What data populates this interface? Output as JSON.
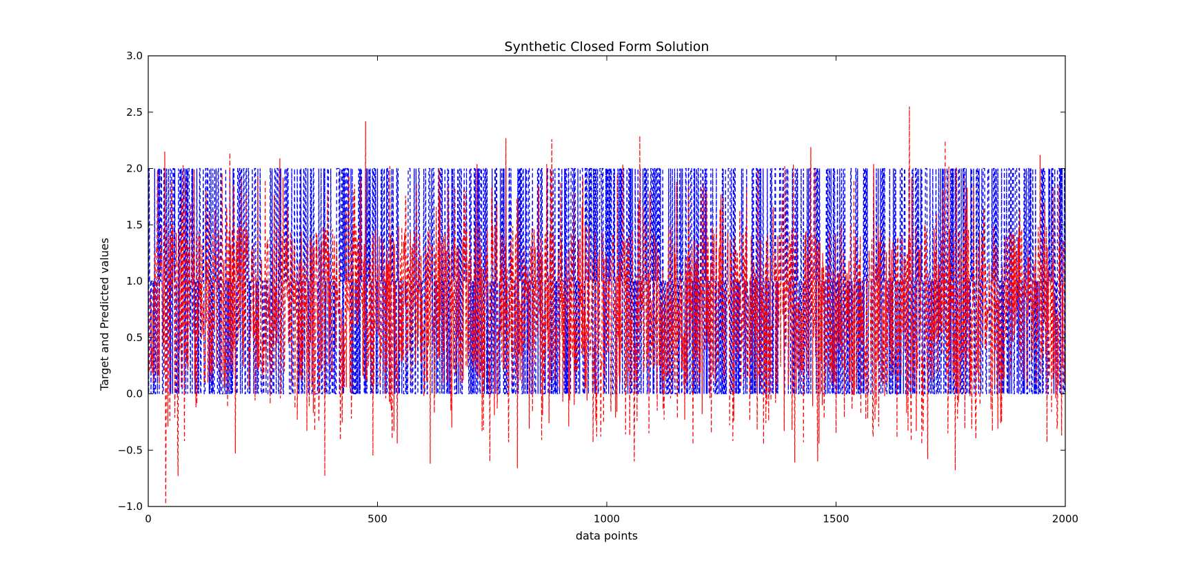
{
  "chart_data": {
    "type": "line",
    "title": "Synthetic Closed Form Solution",
    "xlabel": "data points",
    "ylabel": "Target and Predicted values",
    "xlim": [
      0,
      2000
    ],
    "ylim": [
      -1.0,
      3.0
    ],
    "x_ticks": [
      0,
      500,
      1000,
      1500,
      2000
    ],
    "x_tick_labels": [
      "0",
      "500",
      "1000",
      "1500",
      "2000"
    ],
    "y_ticks": [
      -1.0,
      -0.5,
      0.0,
      0.5,
      1.0,
      1.5,
      2.0,
      2.5,
      3.0
    ],
    "y_tick_labels": [
      "−1.0",
      "−0.5",
      "0.0",
      "0.5",
      "1.0",
      "1.5",
      "2.0",
      "2.5",
      "3.0"
    ],
    "grid": false,
    "legend": "none",
    "series": [
      {
        "role": "target",
        "color": "#0000ff",
        "linestyle": "dashed",
        "values_allowed": [
          0,
          1,
          2
        ],
        "n_points": 2000
      },
      {
        "role": "predicted",
        "color": "#ff0000",
        "linestyle": "dashed",
        "n_points": 2000,
        "value_range": [
          -0.98,
          2.55
        ],
        "notable_points": [
          {
            "x": 38,
            "y": -0.98
          },
          {
            "x": 36,
            "y": 2.15
          },
          {
            "x": 65,
            "y": -0.73
          },
          {
            "x": 178,
            "y": 2.14
          },
          {
            "x": 190,
            "y": -0.53
          },
          {
            "x": 287,
            "y": 2.09
          },
          {
            "x": 385,
            "y": -0.73
          },
          {
            "x": 474,
            "y": 2.42
          },
          {
            "x": 490,
            "y": -0.55
          },
          {
            "x": 615,
            "y": -0.62
          },
          {
            "x": 745,
            "y": -0.6
          },
          {
            "x": 780,
            "y": 2.27
          },
          {
            "x": 805,
            "y": -0.66
          },
          {
            "x": 880,
            "y": 2.26
          },
          {
            "x": 1060,
            "y": -0.6
          },
          {
            "x": 1072,
            "y": 2.29
          },
          {
            "x": 1410,
            "y": -0.61
          },
          {
            "x": 1445,
            "y": 2.19
          },
          {
            "x": 1460,
            "y": -0.6
          },
          {
            "x": 1660,
            "y": 2.55
          },
          {
            "x": 1700,
            "y": -0.58
          },
          {
            "x": 1738,
            "y": 2.25
          },
          {
            "x": 1760,
            "y": -0.68
          },
          {
            "x": 1945,
            "y": 2.12
          },
          {
            "x": 1960,
            "y": -0.43
          }
        ]
      }
    ]
  }
}
